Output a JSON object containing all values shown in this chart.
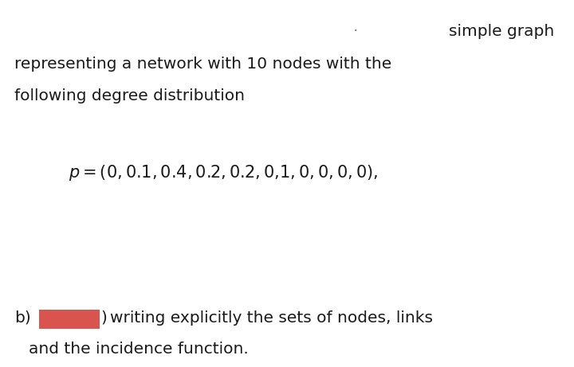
{
  "background_color": "#ffffff",
  "line1_right": "simple graph",
  "line2": "representing a network with 10 nodes with the",
  "line3": "following degree distribution",
  "formula_italic": "p = (0, 0.1, 0.4, 0.2, 0.2, 0,1, 0, 0, 0, 0),",
  "line_b_suffix": " writing explicitly the sets of nodes, links",
  "line_b_last": "and the incidence function.",
  "font_size_main": 14.5,
  "text_color": "#1a1a1a",
  "redacted_color": "#d9534f",
  "dot_color": "#888888"
}
